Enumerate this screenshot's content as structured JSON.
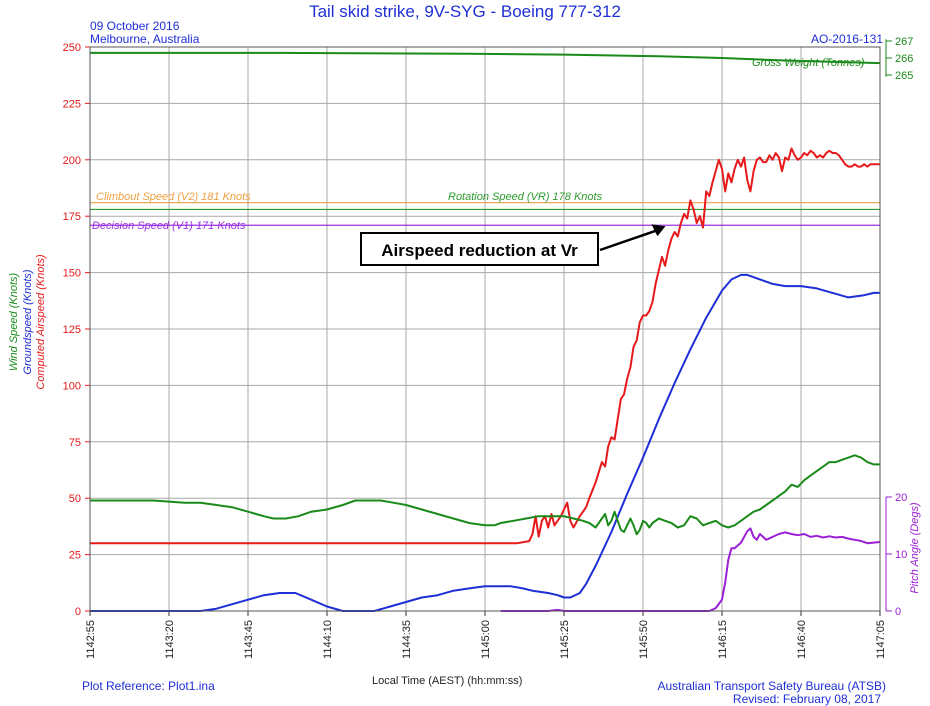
{
  "header": {
    "title": "Tail skid strike, 9V-SYG - Boeing 777-312",
    "date": "09 October 2016",
    "location": "Melbourne, Australia",
    "report_id": "AO-2016-131"
  },
  "footer": {
    "plot_reference": "Plot Reference: Plot1.ina",
    "agency": "Australian Transport Safety Bureau (ATSB)",
    "revised": "Revised: February 08, 2017"
  },
  "colors": {
    "airspeed": "#e8191a",
    "groundspeed": "#1f2fd6",
    "wind": "#1a8a1a",
    "pitch": "#9b1fd6",
    "v2": "#f0a040",
    "vr": "#2e9a2e",
    "v1": "#9b30e0",
    "grid": "#a8a8a8"
  },
  "chart_data": {
    "type": "line",
    "xlabel": "Local Time (AEST) (hh:mm:ss)",
    "x_tick_labels": [
      "1142:55",
      "1143:20",
      "1143:45",
      "1144:10",
      "1144:35",
      "1145:00",
      "1145:25",
      "1145:50",
      "1146:15",
      "1146:40",
      "1147:05"
    ],
    "xlim": [
      0,
      250
    ],
    "left_axis": {
      "labels": [
        "Computed Airspeed (Knots)",
        "Groundspeed (Knots)",
        "Wind Speed (Knots)"
      ],
      "ylim": [
        0,
        250
      ],
      "ticks": [
        0,
        25,
        50,
        75,
        100,
        125,
        150,
        175,
        200,
        225,
        250
      ]
    },
    "right_axis_pitch": {
      "label": "Pitch Angle (Degs)",
      "ylim": [
        0,
        20
      ],
      "ticks": [
        0,
        10,
        20
      ]
    },
    "right_axis_weight": {
      "label": "Gross Weight (Tonnes)",
      "ticks": [
        265,
        266,
        267
      ]
    },
    "reference_lines": [
      {
        "label": "Climbout Speed (V2) 181 Knots",
        "value": 181
      },
      {
        "label": "Rotation Speed (VR) 178 Knots",
        "value": 178
      },
      {
        "label": "Decision Speed (V1) 171 Knots",
        "value": 171
      }
    ],
    "annotation": {
      "text": "Airspeed reduction at Vr",
      "target": [
        184,
        171
      ]
    },
    "series": [
      {
        "name": "Computed Airspeed (Knots)",
        "axis": "left",
        "points": [
          [
            0,
            30
          ],
          [
            135,
            30
          ],
          [
            139,
            31
          ],
          [
            140,
            34
          ],
          [
            141,
            42
          ],
          [
            142,
            33
          ],
          [
            143,
            40
          ],
          [
            144,
            42
          ],
          [
            145,
            37
          ],
          [
            146,
            43
          ],
          [
            147,
            38
          ],
          [
            149,
            42
          ],
          [
            150,
            45
          ],
          [
            151,
            48
          ],
          [
            152,
            40
          ],
          [
            153,
            37
          ],
          [
            155,
            42
          ],
          [
            157,
            46
          ],
          [
            158,
            50
          ],
          [
            160,
            57
          ],
          [
            162,
            66
          ],
          [
            163,
            64
          ],
          [
            164,
            73
          ],
          [
            165,
            77
          ],
          [
            166,
            76
          ],
          [
            167,
            85
          ],
          [
            168,
            94
          ],
          [
            169,
            96
          ],
          [
            170,
            103
          ],
          [
            171,
            108
          ],
          [
            172,
            117
          ],
          [
            173,
            120
          ],
          [
            174,
            128
          ],
          [
            175,
            131
          ],
          [
            176,
            131
          ],
          [
            177,
            133
          ],
          [
            178,
            137
          ],
          [
            179,
            145
          ],
          [
            180,
            151
          ],
          [
            181,
            157
          ],
          [
            182,
            153
          ],
          [
            183,
            160
          ],
          [
            184,
            165
          ],
          [
            185,
            168
          ],
          [
            186,
            166
          ],
          [
            187,
            172
          ],
          [
            188,
            176
          ],
          [
            189,
            174
          ],
          [
            190,
            182
          ],
          [
            191,
            178
          ],
          [
            192,
            172
          ],
          [
            193,
            175
          ],
          [
            194,
            170
          ],
          [
            195,
            186
          ],
          [
            196,
            184
          ],
          [
            197,
            190
          ],
          [
            198,
            195
          ],
          [
            199,
            200
          ],
          [
            200,
            196
          ],
          [
            201,
            186
          ],
          [
            202,
            194
          ],
          [
            203,
            190
          ],
          [
            204,
            196
          ],
          [
            205,
            200
          ],
          [
            206,
            197
          ],
          [
            207,
            201
          ],
          [
            208,
            191
          ],
          [
            209,
            186
          ],
          [
            210,
            195
          ],
          [
            211,
            200
          ],
          [
            212,
            201
          ],
          [
            213,
            199
          ],
          [
            214,
            199
          ],
          [
            215,
            202
          ],
          [
            216,
            200
          ],
          [
            217,
            203
          ],
          [
            218,
            201
          ],
          [
            219,
            195
          ],
          [
            220,
            201
          ],
          [
            221,
            200
          ],
          [
            222,
            205
          ],
          [
            223,
            202
          ],
          [
            224,
            200
          ],
          [
            225,
            201
          ],
          [
            226,
            203
          ],
          [
            227,
            202
          ],
          [
            228,
            204
          ],
          [
            229,
            203
          ],
          [
            230,
            201
          ],
          [
            231,
            202
          ],
          [
            232,
            201
          ],
          [
            233,
            203
          ],
          [
            234,
            204
          ],
          [
            235,
            203
          ],
          [
            236,
            203
          ],
          [
            237,
            202
          ],
          [
            238,
            200
          ],
          [
            239,
            198
          ],
          [
            240,
            197
          ],
          [
            241,
            197
          ],
          [
            242,
            198
          ],
          [
            243,
            197
          ],
          [
            244,
            197
          ],
          [
            245,
            198
          ],
          [
            246,
            197
          ],
          [
            247,
            198
          ],
          [
            248,
            198
          ],
          [
            250,
            198
          ]
        ]
      },
      {
        "name": "Groundspeed (Knots)",
        "axis": "left",
        "points": [
          [
            0,
            0
          ],
          [
            35,
            0
          ],
          [
            40,
            1
          ],
          [
            45,
            3
          ],
          [
            50,
            5
          ],
          [
            55,
            7
          ],
          [
            60,
            8
          ],
          [
            65,
            8
          ],
          [
            70,
            5
          ],
          [
            75,
            2
          ],
          [
            80,
            0
          ],
          [
            90,
            0
          ],
          [
            95,
            2
          ],
          [
            100,
            4
          ],
          [
            105,
            6
          ],
          [
            110,
            7
          ],
          [
            115,
            9
          ],
          [
            120,
            10
          ],
          [
            125,
            11
          ],
          [
            130,
            11
          ],
          [
            133,
            11
          ],
          [
            137,
            10
          ],
          [
            140,
            9
          ],
          [
            145,
            8
          ],
          [
            148,
            7
          ],
          [
            150,
            6
          ],
          [
            152,
            6
          ],
          [
            155,
            8
          ],
          [
            157,
            12
          ],
          [
            160,
            20
          ],
          [
            165,
            35
          ],
          [
            170,
            52
          ],
          [
            175,
            68
          ],
          [
            180,
            85
          ],
          [
            185,
            101
          ],
          [
            190,
            116
          ],
          [
            195,
            130
          ],
          [
            200,
            142
          ],
          [
            203,
            147
          ],
          [
            206,
            149
          ],
          [
            208,
            149
          ],
          [
            212,
            147
          ],
          [
            216,
            145
          ],
          [
            220,
            144
          ],
          [
            225,
            144
          ],
          [
            230,
            143
          ],
          [
            235,
            141
          ],
          [
            240,
            139
          ],
          [
            245,
            140
          ],
          [
            248,
            141
          ],
          [
            250,
            141
          ]
        ]
      },
      {
        "name": "Wind Speed (Knots)",
        "axis": "left",
        "points": [
          [
            0,
            49
          ],
          [
            20,
            49
          ],
          [
            30,
            48
          ],
          [
            35,
            48
          ],
          [
            40,
            47
          ],
          [
            45,
            46
          ],
          [
            50,
            44
          ],
          [
            55,
            42
          ],
          [
            58,
            41
          ],
          [
            62,
            41
          ],
          [
            66,
            42
          ],
          [
            70,
            44
          ],
          [
            75,
            45
          ],
          [
            80,
            47
          ],
          [
            84,
            49
          ],
          [
            88,
            49
          ],
          [
            92,
            49
          ],
          [
            96,
            48
          ],
          [
            100,
            47
          ],
          [
            105,
            45
          ],
          [
            110,
            43
          ],
          [
            115,
            41
          ],
          [
            120,
            39
          ],
          [
            125,
            38
          ],
          [
            128,
            38
          ],
          [
            130,
            39
          ],
          [
            134,
            40
          ],
          [
            138,
            41
          ],
          [
            142,
            42
          ],
          [
            146,
            42
          ],
          [
            150,
            42
          ],
          [
            153,
            41
          ],
          [
            156,
            40
          ],
          [
            158,
            39
          ],
          [
            160,
            37
          ],
          [
            162,
            41
          ],
          [
            163,
            43
          ],
          [
            164,
            38
          ],
          [
            165,
            40
          ],
          [
            166,
            44
          ],
          [
            167,
            40
          ],
          [
            168,
            36
          ],
          [
            169,
            35
          ],
          [
            170,
            38
          ],
          [
            171,
            41
          ],
          [
            172,
            38
          ],
          [
            173,
            34
          ],
          [
            174,
            36
          ],
          [
            175,
            40
          ],
          [
            176,
            39
          ],
          [
            177,
            37
          ],
          [
            178,
            39
          ],
          [
            180,
            41
          ],
          [
            182,
            40
          ],
          [
            184,
            39
          ],
          [
            186,
            37
          ],
          [
            188,
            38
          ],
          [
            190,
            42
          ],
          [
            192,
            41
          ],
          [
            194,
            38
          ],
          [
            196,
            39
          ],
          [
            198,
            40
          ],
          [
            200,
            38
          ],
          [
            202,
            37
          ],
          [
            204,
            38
          ],
          [
            206,
            40
          ],
          [
            208,
            42
          ],
          [
            210,
            44
          ],
          [
            212,
            45
          ],
          [
            214,
            47
          ],
          [
            216,
            49
          ],
          [
            218,
            51
          ],
          [
            220,
            53
          ],
          [
            222,
            56
          ],
          [
            224,
            55
          ],
          [
            226,
            58
          ],
          [
            228,
            60
          ],
          [
            230,
            62
          ],
          [
            232,
            64
          ],
          [
            234,
            66
          ],
          [
            236,
            66
          ],
          [
            238,
            67
          ],
          [
            240,
            68
          ],
          [
            242,
            69
          ],
          [
            244,
            68
          ],
          [
            246,
            66
          ],
          [
            248,
            65
          ],
          [
            250,
            65
          ]
        ]
      },
      {
        "name": "Pitch Angle (Degs)",
        "axis": "right_pitch",
        "points": [
          [
            130,
            0
          ],
          [
            145,
            0
          ],
          [
            148,
            0.2
          ],
          [
            150,
            0
          ],
          [
            170,
            0
          ],
          [
            190,
            0
          ],
          [
            196,
            0
          ],
          [
            198,
            0.5
          ],
          [
            200,
            2
          ],
          [
            201,
            5
          ],
          [
            202,
            9
          ],
          [
            203,
            11
          ],
          [
            204,
            11
          ],
          [
            206,
            12
          ],
          [
            208,
            14
          ],
          [
            209,
            14.5
          ],
          [
            210,
            13
          ],
          [
            211,
            12.5
          ],
          [
            212,
            13.5
          ],
          [
            213,
            13
          ],
          [
            214,
            12.5
          ],
          [
            216,
            13
          ],
          [
            218,
            13.5
          ],
          [
            220,
            13.8
          ],
          [
            222,
            13.5
          ],
          [
            224,
            13.3
          ],
          [
            226,
            13.5
          ],
          [
            228,
            13
          ],
          [
            230,
            13.2
          ],
          [
            232,
            12.9
          ],
          [
            234,
            13.1
          ],
          [
            236,
            12.9
          ],
          [
            238,
            13
          ],
          [
            240,
            12.7
          ],
          [
            242,
            12.5
          ],
          [
            244,
            12.3
          ],
          [
            246,
            11.9
          ],
          [
            248,
            12
          ],
          [
            250,
            12.1
          ]
        ]
      },
      {
        "name": "Gross Weight (Tonnes)",
        "axis": "right_weight",
        "points": [
          [
            0,
            266.3
          ],
          [
            60,
            266.3
          ],
          [
            120,
            266.25
          ],
          [
            150,
            266.2
          ],
          [
            180,
            266.1
          ],
          [
            200,
            266.0
          ],
          [
            220,
            265.85
          ],
          [
            240,
            265.75
          ],
          [
            250,
            265.7
          ]
        ]
      }
    ]
  }
}
